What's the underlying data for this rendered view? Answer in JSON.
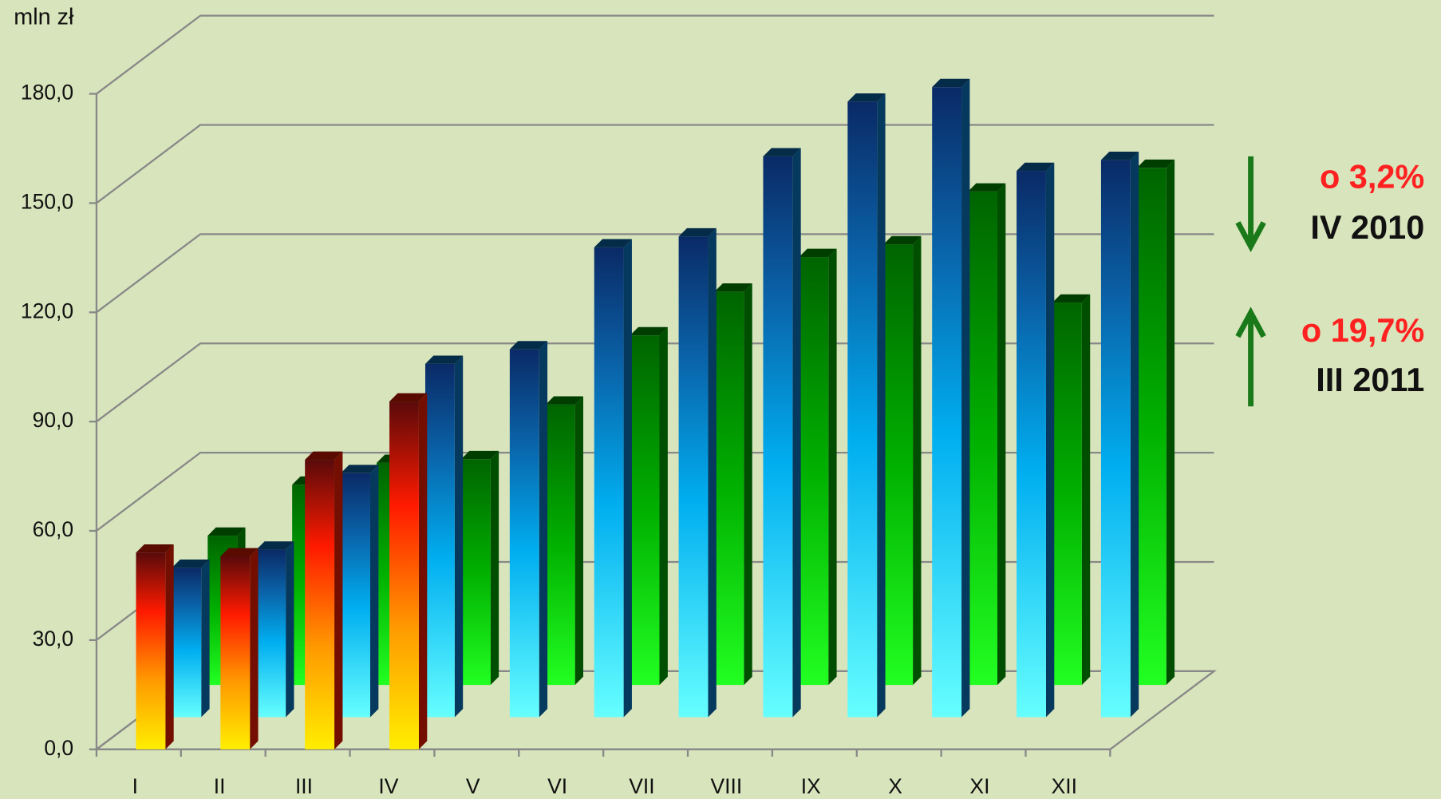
{
  "chart_data": {
    "type": "bar3d",
    "y_label": "mln zł",
    "categories": [
      "I",
      "II",
      "III",
      "IV",
      "V",
      "VI",
      "VII",
      "VIII",
      "IX",
      "X",
      "XI",
      "XII"
    ],
    "series": [
      {
        "color": "#ff2000",
        "values": [
          54,
          53,
          79.5,
          95.5,
          null,
          null,
          null,
          null,
          null,
          null,
          null,
          null
        ]
      },
      {
        "color": "#0a7fd0",
        "values": [
          41,
          46,
          67,
          97,
          101,
          129,
          132,
          154,
          169,
          173,
          150,
          153
        ]
      },
      {
        "color": "#00b000",
        "values": [
          41,
          55,
          61,
          62,
          77,
          96,
          108,
          117.5,
          121,
          135.5,
          105,
          142
        ]
      }
    ],
    "ylim": [
      0,
      180
    ],
    "yticks": [
      {
        "value": 0,
        "label": "0,0"
      },
      {
        "value": 30,
        "label": "30,0"
      },
      {
        "value": 60,
        "label": "60,0"
      },
      {
        "value": 90,
        "label": "90,0"
      },
      {
        "value": 120,
        "label": "120,0"
      },
      {
        "value": 150,
        "label": "150,0"
      },
      {
        "value": 180,
        "label": "180,0"
      }
    ],
    "annotations": [
      "o 3,2%",
      "IV 2010",
      "o 19,7%",
      "III 2011"
    ]
  }
}
